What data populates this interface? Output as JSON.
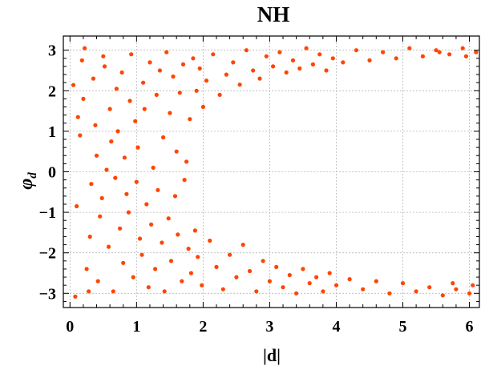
{
  "chart_data": {
    "type": "scatter",
    "title": "NH",
    "xlabel": "|d|",
    "ylabel": "φ",
    "ylabel_subscript": "d",
    "xlim": [
      -0.1,
      6.15
    ],
    "ylim": [
      -3.35,
      3.35
    ],
    "xticks": [
      0,
      1,
      2,
      3,
      4,
      5,
      6
    ],
    "yticks": [
      -3,
      -2,
      -1,
      0,
      1,
      2,
      3
    ],
    "grid": true,
    "marker_color": "#ff4500",
    "grid_color": "#b8b8b8",
    "series": [
      {
        "name": "",
        "points": [
          [
            0.05,
            2.14
          ],
          [
            0.08,
            -3.08
          ],
          [
            0.12,
            1.35
          ],
          [
            0.1,
            -0.85
          ],
          [
            0.18,
            2.75
          ],
          [
            0.22,
            3.05
          ],
          [
            0.15,
            0.9
          ],
          [
            0.25,
            -2.4
          ],
          [
            0.3,
            -1.6
          ],
          [
            0.2,
            1.8
          ],
          [
            0.35,
            2.3
          ],
          [
            0.28,
            -2.95
          ],
          [
            0.4,
            0.4
          ],
          [
            0.32,
            -0.3
          ],
          [
            0.45,
            -1.1
          ],
          [
            0.38,
            1.15
          ],
          [
            0.5,
            2.85
          ],
          [
            0.42,
            -2.7
          ],
          [
            0.55,
            0.05
          ],
          [
            0.48,
            -0.65
          ],
          [
            0.6,
            1.55
          ],
          [
            0.52,
            2.6
          ],
          [
            0.58,
            -1.85
          ],
          [
            0.65,
            -2.95
          ],
          [
            0.62,
            0.75
          ],
          [
            0.7,
            2.05
          ],
          [
            0.68,
            -0.15
          ],
          [
            0.75,
            -1.4
          ],
          [
            0.72,
            1.0
          ],
          [
            0.8,
            -2.25
          ],
          [
            0.78,
            2.45
          ],
          [
            0.85,
            -0.55
          ],
          [
            0.82,
            0.35
          ],
          [
            0.9,
            1.75
          ],
          [
            0.88,
            -1.0
          ],
          [
            0.95,
            -2.6
          ],
          [
            0.92,
            2.9
          ],
          [
            1.0,
            -0.25
          ],
          [
            0.98,
            1.25
          ],
          [
            1.05,
            -1.65
          ],
          [
            1.02,
            0.6
          ],
          [
            1.1,
            2.2
          ],
          [
            1.08,
            -2.05
          ],
          [
            1.15,
            -0.8
          ],
          [
            1.12,
            1.55
          ],
          [
            1.2,
            2.7
          ],
          [
            1.18,
            -2.85
          ],
          [
            1.25,
            0.1
          ],
          [
            1.22,
            -1.3
          ],
          [
            1.3,
            1.9
          ],
          [
            1.28,
            -2.4
          ],
          [
            1.35,
            2.5
          ],
          [
            1.32,
            -0.45
          ],
          [
            1.4,
            0.85
          ],
          [
            1.38,
            -1.75
          ],
          [
            1.45,
            2.95
          ],
          [
            1.42,
            -2.95
          ],
          [
            1.5,
            1.45
          ],
          [
            1.48,
            -1.15
          ],
          [
            1.55,
            2.35
          ],
          [
            1.52,
            -2.2
          ],
          [
            1.6,
            0.5
          ],
          [
            1.58,
            -0.6
          ],
          [
            1.65,
            1.95
          ],
          [
            1.62,
            -1.55
          ],
          [
            1.7,
            2.65
          ],
          [
            1.68,
            -2.7
          ],
          [
            1.75,
            0.25
          ],
          [
            1.72,
            -0.2
          ],
          [
            1.8,
            1.3
          ],
          [
            1.78,
            -1.9
          ],
          [
            1.85,
            2.8
          ],
          [
            1.82,
            -2.5
          ],
          [
            1.9,
            2.0
          ],
          [
            1.88,
            -1.45
          ],
          [
            1.95,
            2.55
          ],
          [
            1.92,
            -2.1
          ],
          [
            2.0,
            1.6
          ],
          [
            1.98,
            -2.8
          ],
          [
            2.05,
            2.25
          ],
          [
            2.1,
            -1.7
          ],
          [
            2.15,
            2.9
          ],
          [
            2.2,
            -2.35
          ],
          [
            2.25,
            1.9
          ],
          [
            2.3,
            -2.9
          ],
          [
            2.35,
            2.4
          ],
          [
            2.4,
            -2.05
          ],
          [
            2.45,
            2.7
          ],
          [
            2.5,
            -2.6
          ],
          [
            2.55,
            2.15
          ],
          [
            2.6,
            -1.8
          ],
          [
            2.65,
            3.0
          ],
          [
            2.7,
            -2.45
          ],
          [
            2.75,
            2.5
          ],
          [
            2.8,
            -2.95
          ],
          [
            2.85,
            2.3
          ],
          [
            2.9,
            -2.2
          ],
          [
            2.95,
            2.85
          ],
          [
            3.0,
            -2.7
          ],
          [
            3.05,
            2.6
          ],
          [
            3.1,
            -2.35
          ],
          [
            3.15,
            2.95
          ],
          [
            3.2,
            -2.85
          ],
          [
            3.25,
            2.45
          ],
          [
            3.3,
            -2.55
          ],
          [
            3.35,
            2.75
          ],
          [
            3.4,
            -3.0
          ],
          [
            3.45,
            2.55
          ],
          [
            3.5,
            -2.4
          ],
          [
            3.55,
            3.05
          ],
          [
            3.6,
            -2.75
          ],
          [
            3.65,
            2.65
          ],
          [
            3.7,
            -2.6
          ],
          [
            3.75,
            2.9
          ],
          [
            3.8,
            -2.95
          ],
          [
            3.85,
            2.5
          ],
          [
            3.9,
            -2.5
          ],
          [
            3.95,
            2.8
          ],
          [
            4.0,
            -2.8
          ],
          [
            4.1,
            2.7
          ],
          [
            4.2,
            -2.65
          ],
          [
            4.3,
            3.0
          ],
          [
            4.4,
            -2.9
          ],
          [
            4.5,
            2.75
          ],
          [
            4.6,
            -2.7
          ],
          [
            4.7,
            2.95
          ],
          [
            4.8,
            -3.0
          ],
          [
            4.9,
            2.8
          ],
          [
            5.0,
            -2.75
          ],
          [
            5.1,
            3.05
          ],
          [
            5.2,
            -2.95
          ],
          [
            5.3,
            2.85
          ],
          [
            5.4,
            -2.85
          ],
          [
            5.5,
            3.0
          ],
          [
            5.6,
            -3.05
          ],
          [
            5.7,
            2.9
          ],
          [
            5.8,
            -2.9
          ],
          [
            5.9,
            3.05
          ],
          [
            6.0,
            -3.0
          ],
          [
            6.1,
            2.95
          ],
          [
            6.05,
            -2.8
          ],
          [
            5.95,
            2.85
          ],
          [
            5.75,
            -2.75
          ],
          [
            5.55,
            2.95
          ]
        ]
      }
    ]
  }
}
